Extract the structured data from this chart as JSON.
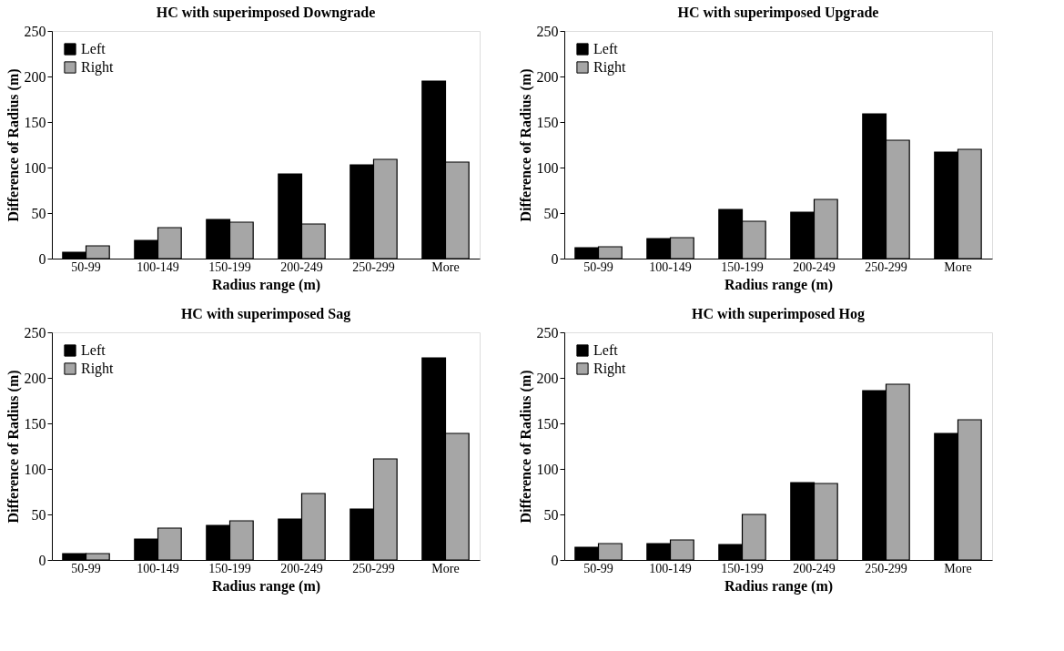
{
  "chart_data": [
    {
      "type": "bar",
      "title": "HC with superimposed  Downgrade",
      "xlabel": "Radius range (m)",
      "ylabel": "Difference of Radius (m)",
      "categories": [
        "50-99",
        "100-149",
        "150-199",
        "200-249",
        "250-299",
        "More"
      ],
      "series": [
        {
          "name": "Left",
          "color": "#000000",
          "values": [
            7,
            20,
            43,
            93,
            103,
            195
          ]
        },
        {
          "name": "Right",
          "color": "#a6a6a6",
          "values": [
            14,
            34,
            40,
            38,
            109,
            106
          ]
        }
      ],
      "ylim": [
        0,
        250
      ],
      "yticks": [
        0,
        50,
        100,
        150,
        200,
        250
      ],
      "grid": false,
      "legend": "top left"
    },
    {
      "type": "bar",
      "title": "HC with superimposed Upgrade",
      "xlabel": "Radius range (m)",
      "ylabel": "Difference of Radius (m)",
      "categories": [
        "50-99",
        "100-149",
        "150-199",
        "200-249",
        "250-299",
        "More"
      ],
      "series": [
        {
          "name": "Left",
          "color": "#000000",
          "values": [
            12,
            22,
            54,
            51,
            159,
            117
          ]
        },
        {
          "name": "Right",
          "color": "#a6a6a6",
          "values": [
            13,
            23,
            41,
            65,
            130,
            120
          ]
        }
      ],
      "ylim": [
        0,
        250
      ],
      "yticks": [
        0,
        50,
        100,
        150,
        200,
        250
      ],
      "grid": false,
      "legend": "top left"
    },
    {
      "type": "bar",
      "title": "HC with superimposed Sag",
      "xlabel": "Radius range (m)",
      "ylabel": "Difference of Radius (m)",
      "categories": [
        "50-99",
        "100-149",
        "150-199",
        "200-249",
        "250-299",
        "More"
      ],
      "series": [
        {
          "name": "Left",
          "color": "#000000",
          "values": [
            7,
            23,
            38,
            45,
            56,
            222
          ]
        },
        {
          "name": "Right",
          "color": "#a6a6a6",
          "values": [
            7,
            35,
            43,
            73,
            111,
            139
          ]
        }
      ],
      "ylim": [
        0,
        250
      ],
      "yticks": [
        0,
        50,
        100,
        150,
        200,
        250
      ],
      "grid": false,
      "legend": "top left"
    },
    {
      "type": "bar",
      "title": "HC with superimposed Hog",
      "xlabel": "Radius range (m)",
      "ylabel": "Difference of Radius (m)",
      "categories": [
        "50-99",
        "100-149",
        "150-199",
        "200-249",
        "250-299",
        "More"
      ],
      "series": [
        {
          "name": "Left",
          "color": "#000000",
          "values": [
            14,
            18,
            17,
            85,
            186,
            139
          ]
        },
        {
          "name": "Right",
          "color": "#a6a6a6",
          "values": [
            18,
            22,
            50,
            84,
            193,
            154
          ]
        }
      ],
      "ylim": [
        0,
        250
      ],
      "yticks": [
        0,
        50,
        100,
        150,
        200,
        250
      ],
      "grid": false,
      "legend": "top left"
    }
  ]
}
